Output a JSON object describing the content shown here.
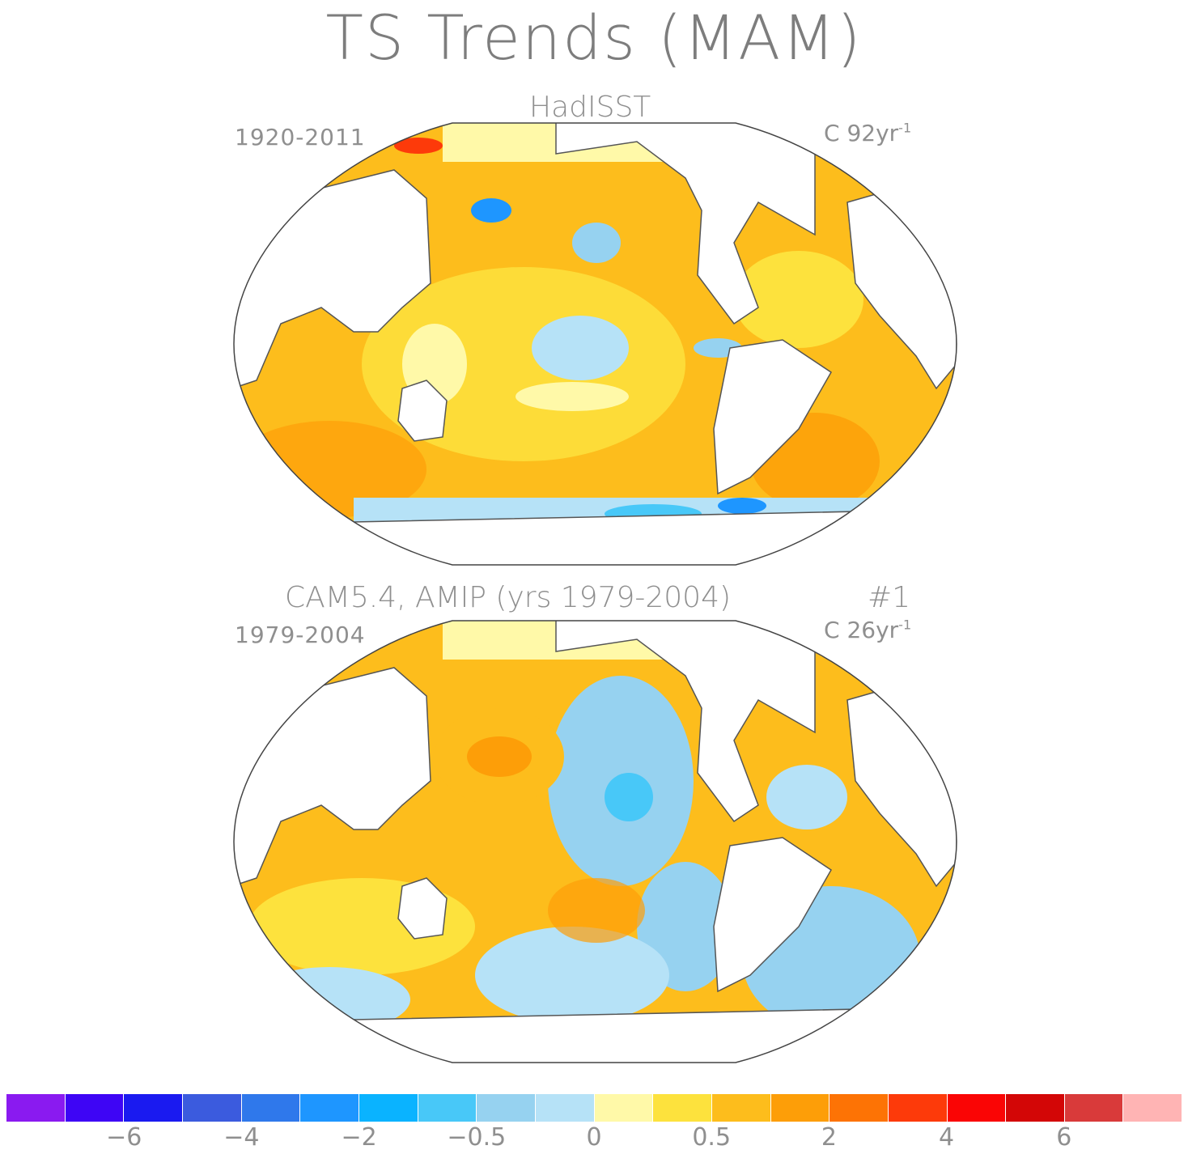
{
  "figure": {
    "title": "TS Trends (MAM)"
  },
  "panels": [
    {
      "title": "HadISST",
      "period": "1920-2011",
      "units_prefix": "C 92yr",
      "units_exp": "-1"
    },
    {
      "title": "CAM5.4, AMIP (yrs 1979-2004)",
      "member": "#1",
      "period": "1979-2004",
      "units_prefix": "C 26yr",
      "units_exp": "-1"
    }
  ],
  "colorbar": {
    "colors": [
      "#8a1af0",
      "#3e05f5",
      "#1a1af0",
      "#3b5bde",
      "#2f78eb",
      "#1e96ff",
      "#0ab3ff",
      "#48c8f8",
      "#96d2f0",
      "#b6e2f7",
      "#fff9a8",
      "#fde23d",
      "#fdbd1c",
      "#fd9e08",
      "#fd7305",
      "#fd3a0a",
      "#fa0505",
      "#d30606",
      "#d93a3a",
      "#ffb4b4"
    ],
    "tick_labels": [
      "−6",
      "−4",
      "−2",
      "−0.5",
      "0",
      "0.5",
      "2",
      "4",
      "6"
    ]
  },
  "chart_data": {
    "type": "heatmap",
    "title": "TS Trends (MAM)",
    "projection": "Robinson (Pacific-centered)",
    "colorbar_levels": [
      "<-7",
      "-7..-6",
      "-6..-5",
      "-5..-4",
      "-4..-3",
      "-3..-2",
      "-2..-1",
      "-1..-0.5",
      "-0.5..-0.2",
      "-0.2..0",
      "0..0.2",
      "0.2..0.5",
      "0.5..1",
      "1..2",
      "2..3",
      "3..4",
      "4..5",
      "5..6",
      "6..7",
      ">7"
    ],
    "colorbar_ticks": [
      -6,
      -4,
      -2,
      -0.5,
      0,
      0.5,
      2,
      4,
      6
    ],
    "maps": [
      {
        "title": "HadISST",
        "period": "1920-2011",
        "units": "C 92yr-1",
        "pattern": "warming nearly everywhere (0.5-2), cooling patches in central Pacific and Southern Ocean"
      },
      {
        "title": "CAM5.4, AMIP (yrs 1979-2004) #1",
        "period": "1979-2004",
        "units": "C 26yr-1",
        "pattern": "cooling in eastern Pacific and South Atlantic/Southern Ocean, warming in western Pacific and North Atlantic"
      }
    ]
  }
}
